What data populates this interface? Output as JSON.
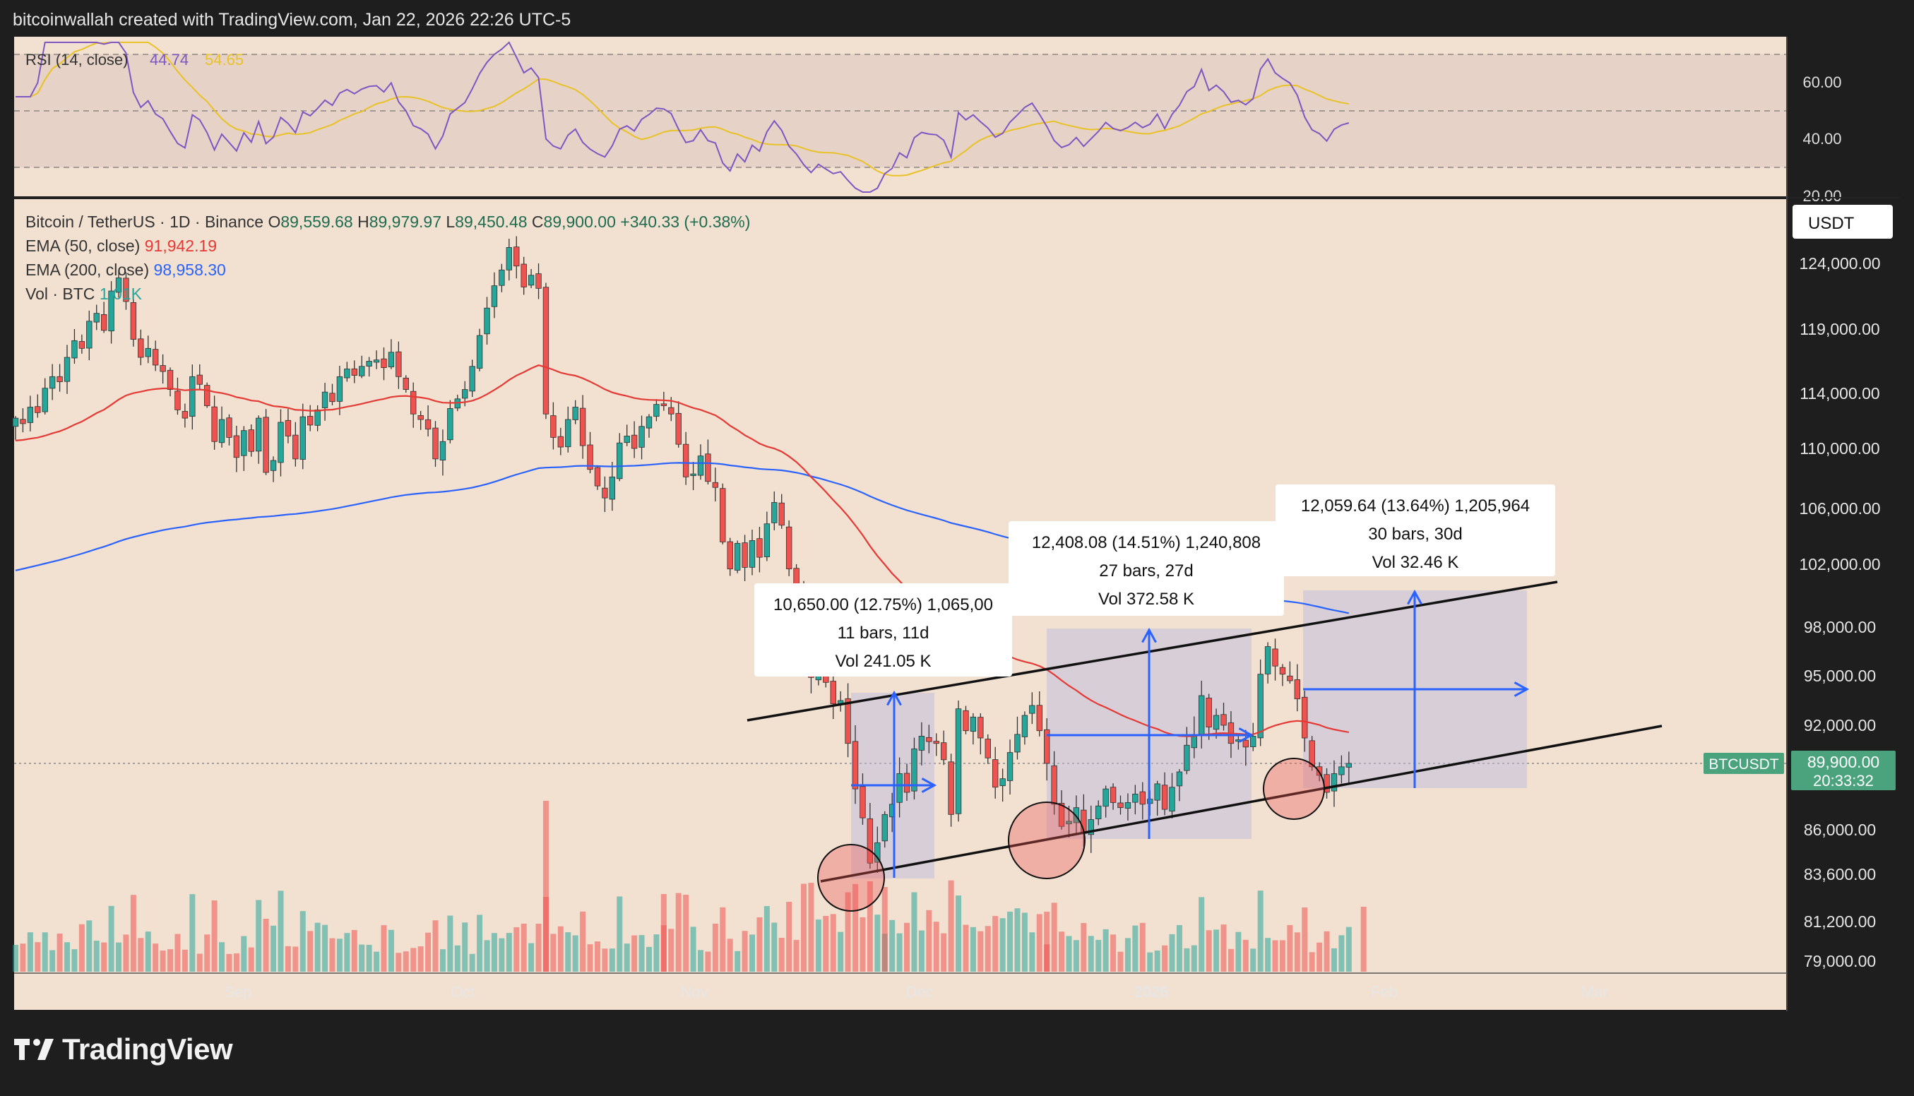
{
  "header": "bitcoinwallah created with TradingView.com, Jan 22, 2026 22:26 UTC-5",
  "footer": {
    "brand": "TradingView"
  },
  "rsi": {
    "label": "RSI (14, close)",
    "value": "44.74",
    "ma_value": "54.65",
    "levels": [
      70,
      50,
      30
    ],
    "scale": [
      "60.00",
      "40.00",
      "20.00"
    ],
    "colors": {
      "rsi": "#7e57c2",
      "ma": "#e8c228",
      "band": "#e6d2c6"
    }
  },
  "legend": {
    "symbol": "Bitcoin / TetherUS · 1D · Binance",
    "open_label": "O",
    "open": "89,559.68",
    "high_label": "H",
    "high": "89,979.97",
    "low_label": "L",
    "low": "89,450.48",
    "close_label": "C",
    "close": "89,900.00",
    "change": "+340.33 (+0.38%)",
    "ema50_label": "EMA (50, close)",
    "ema50_value": "91,942.19",
    "ema200_label": "EMA (200, close)",
    "ema200_value": "98,958.30",
    "vol_label": "Vol · BTC",
    "vol_value": "1.01K"
  },
  "price_axis": {
    "currency": "USDT",
    "ticks": [
      "124,000.00",
      "119,000.00",
      "114,000.00",
      "110,000.00",
      "106,000.00",
      "102,000.00",
      "98,000.00",
      "95,000.00",
      "92,000.00",
      "89,900.00",
      "86,000.00",
      "83,600.00",
      "81,200.00",
      "79,000.00"
    ],
    "last_label": "BTCUSDT",
    "last_price": "89,900.00",
    "countdown": "20:33:32"
  },
  "time_axis": [
    "Sep",
    "Oct",
    "Nov",
    "Dec",
    "2026",
    "Feb",
    "Mar"
  ],
  "annotations": [
    {
      "line1": "10,650.00 (12.75%) 1,065,00",
      "line2": "11 bars, 11d",
      "line3": "Vol 241.05 K"
    },
    {
      "line1": "12,408.08 (14.51%) 1,240,808",
      "line2": "27 bars, 27d",
      "line3": "Vol 372.58 K"
    },
    {
      "line1": "12,059.64 (13.64%) 1,205,964",
      "line2": "30 bars, 30d",
      "line3": "Vol 32.46 K"
    }
  ],
  "colors": {
    "bg": "#f2e1d1",
    "up": "#26a69a",
    "down": "#ef5350",
    "ema50": "#e53935",
    "ema200": "#2962ff",
    "arrow": "#2962ff",
    "range": "#b7b7e0",
    "last": "#4aa37c"
  },
  "chart_data": {
    "type": "candlestick",
    "symbol": "Bitcoin / TetherUS",
    "interval": "1D",
    "exchange": "Binance",
    "ylim": [
      78500,
      126500
    ],
    "y_ticks": [
      124000,
      119000,
      114000,
      110000,
      106000,
      102000,
      98000,
      95000,
      92000,
      89900,
      86000,
      83600,
      81200,
      79000
    ],
    "x_labels": [
      "Sep",
      "Oct",
      "Nov",
      "Dec",
      "2026",
      "Feb",
      "Mar"
    ],
    "close_series": [
      112200,
      111800,
      113000,
      112600,
      114400,
      115300,
      114900,
      116800,
      118100,
      117500,
      119600,
      120200,
      118900,
      121900,
      122900,
      121100,
      118200,
      116800,
      117500,
      116200,
      115700,
      114300,
      112800,
      112200,
      115300,
      114700,
      113100,
      110500,
      112100,
      110800,
      109400,
      111300,
      109800,
      112200,
      108400,
      109200,
      111900,
      110900,
      109300,
      112300,
      111700,
      112800,
      114100,
      113400,
      115300,
      115900,
      115400,
      116100,
      116500,
      116600,
      116000,
      117200,
      115300,
      114300,
      112500,
      112100,
      111400,
      109300,
      110500,
      112900,
      113600,
      114300,
      116100,
      118500,
      120600,
      122300,
      123500,
      125200,
      123800,
      122200,
      123100,
      122100,
      112500,
      110800,
      110100,
      112100,
      113000,
      110200,
      108600,
      107500,
      106700,
      108100,
      110400,
      110900,
      110000,
      111600,
      112300,
      113200,
      113100,
      112500,
      110300,
      108100,
      108300,
      109500,
      107800,
      107400,
      103600,
      101700,
      103500,
      101800,
      103700,
      102500,
      104900,
      106400,
      104800,
      101700,
      99900,
      97200,
      94900,
      95900,
      94600,
      93300,
      93500,
      91000,
      88400,
      86700,
      84200,
      85300,
      86900,
      87500,
      89300,
      88200,
      90700,
      91400,
      91100,
      91000,
      90100,
      86900,
      93000,
      91700,
      92500,
      91300,
      90200,
      88500,
      89000,
      90500,
      91500,
      92600,
      93200,
      91700,
      89900,
      87500,
      86200,
      86500,
      87300,
      85800,
      86600,
      87400,
      88400,
      87600,
      87300,
      87600,
      88100,
      87500,
      87800,
      88700,
      87200,
      88500,
      89400,
      90900,
      91500,
      93800,
      91900,
      92600,
      92000,
      91000,
      91200,
      90800,
      91400,
      95100,
      96800,
      95600,
      95100,
      94700,
      93600,
      91300,
      89700,
      89200,
      88200,
      89300,
      89700,
      89900
    ],
    "ema50": {
      "name": "EMA (50, close)",
      "last": 91942.19
    },
    "ema200": {
      "name": "EMA (200, close)",
      "last": 98958.3
    },
    "rsi": {
      "name": "RSI (14, close)",
      "last": 44.74,
      "ma_last": 54.65
    },
    "channel": {
      "upper": [
        [
          93200,
          "Nov 17"
        ],
        [
          101200,
          "Feb 20"
        ]
      ],
      "lower": [
        [
          84300,
          "Nov 23"
        ],
        [
          92200,
          "Mar 10"
        ]
      ]
    },
    "measures": [
      {
        "change": 10650.0,
        "pct": 12.75,
        "bars": 11,
        "days": "11d",
        "vol": "241.05K"
      },
      {
        "change": 12408.08,
        "pct": 14.51,
        "bars": 27,
        "days": "27d",
        "vol": "372.58K"
      },
      {
        "change": 12059.64,
        "pct": 13.64,
        "bars": 30,
        "days": "30d",
        "vol": "32.46K"
      }
    ],
    "last_price": 89900.0
  }
}
